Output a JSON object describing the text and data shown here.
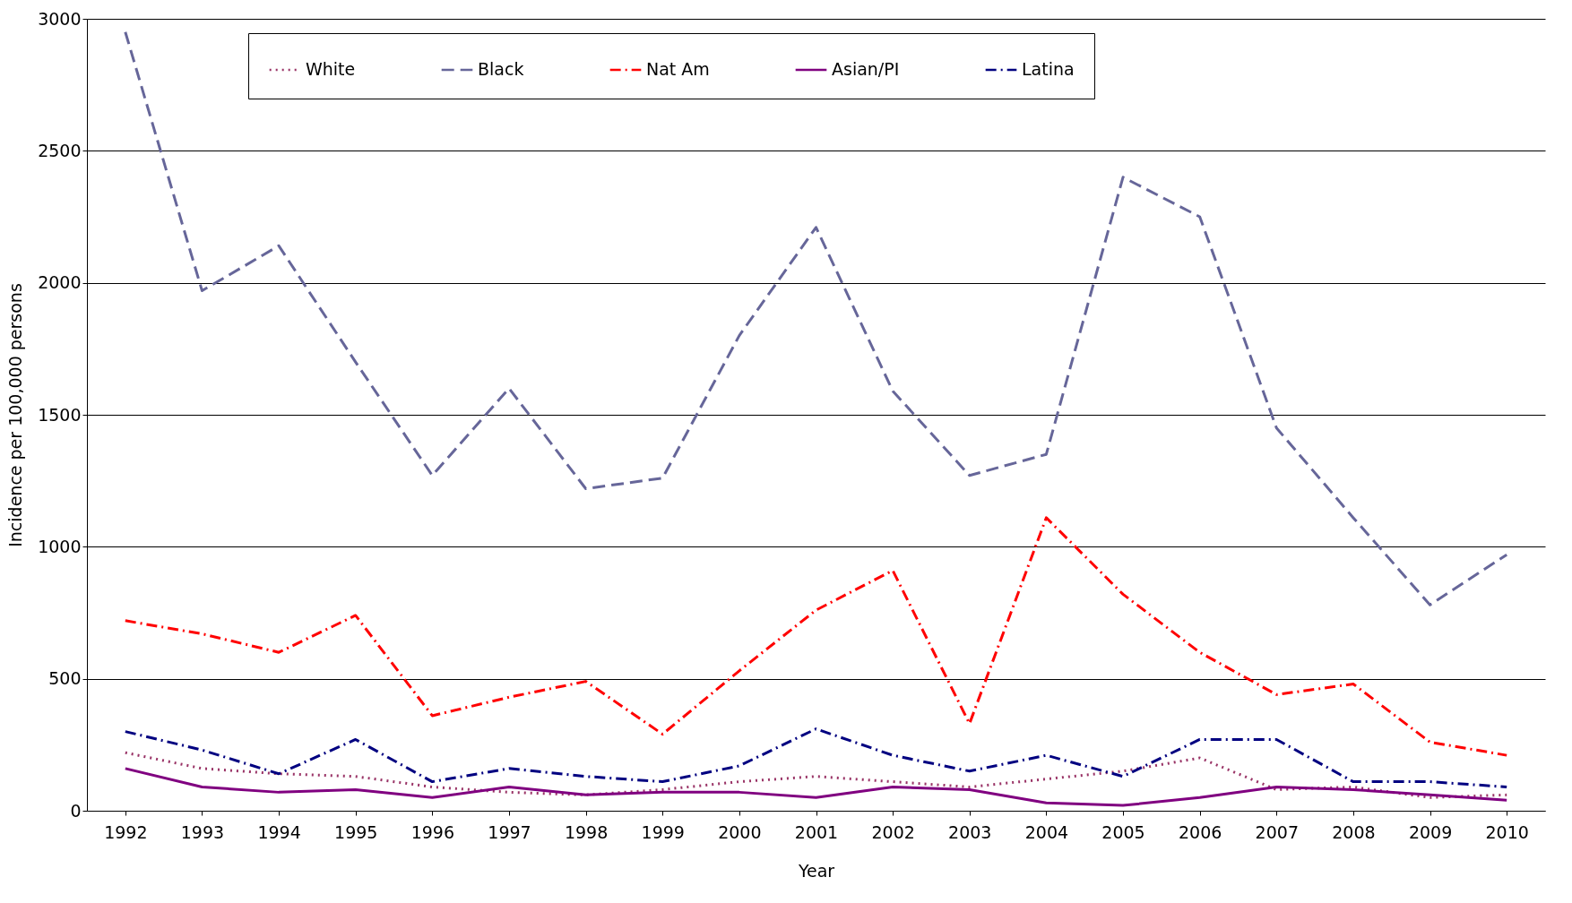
{
  "chart_data": {
    "type": "line",
    "xlabel": "Year",
    "ylabel": "Incidence per 100,000 persons",
    "categories": [
      "1992",
      "1993",
      "1994",
      "1995",
      "1996",
      "1997",
      "1998",
      "1999",
      "2000",
      "2001",
      "2002",
      "2003",
      "2004",
      "2005",
      "2006",
      "2007",
      "2008",
      "2009",
      "2010"
    ],
    "series": [
      {
        "name": "White",
        "color": "#993366",
        "line_style": "dotted",
        "values": [
          220,
          160,
          140,
          130,
          90,
          70,
          60,
          80,
          110,
          130,
          110,
          90,
          120,
          150,
          200,
          80,
          90,
          50,
          60
        ]
      },
      {
        "name": "Black",
        "color": "#666699",
        "line_style": "dashed",
        "values": [
          2950,
          1970,
          2140,
          1700,
          1270,
          1600,
          1220,
          1260,
          1800,
          2210,
          1590,
          1270,
          1350,
          2400,
          2250,
          1450,
          1110,
          780,
          970
        ]
      },
      {
        "name": "Nat Am",
        "color": "#ff0000",
        "line_style": "dashdot",
        "values": [
          720,
          670,
          600,
          740,
          360,
          430,
          490,
          290,
          530,
          760,
          910,
          330,
          1110,
          820,
          600,
          440,
          480,
          260,
          210
        ]
      },
      {
        "name": "Asian/PI",
        "color": "#800080",
        "line_style": "solid",
        "values": [
          160,
          90,
          70,
          80,
          50,
          90,
          60,
          70,
          70,
          50,
          90,
          80,
          30,
          20,
          50,
          90,
          80,
          60,
          40
        ]
      },
      {
        "name": "Latina",
        "color": "#000080",
        "line_style": "dashdot",
        "values": [
          300,
          230,
          140,
          270,
          110,
          160,
          130,
          110,
          170,
          310,
          210,
          150,
          210,
          130,
          270,
          270,
          110,
          110,
          90
        ]
      }
    ],
    "ylim": [
      0,
      3000
    ],
    "yticks": [
      0,
      500,
      1000,
      1500,
      2000,
      2500,
      3000
    ],
    "grid": "y",
    "legend": "top"
  }
}
